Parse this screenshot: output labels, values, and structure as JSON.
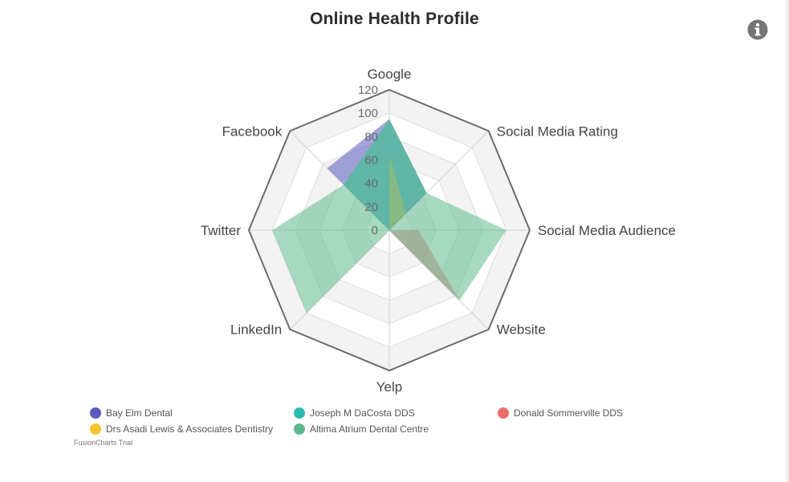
{
  "title": "Online Health Profile",
  "info_icon": "info-circle-icon",
  "trial_text": "FusionCharts Trial",
  "chart_data": {
    "type": "radar",
    "title": "Online Health Profile",
    "categories": [
      "Google",
      "Social Media Rating",
      "Social Media Audience",
      "Website",
      "Yelp",
      "LinkedIn",
      "Twitter",
      "Facebook"
    ],
    "ylim": [
      0,
      120
    ],
    "ticks": [
      0,
      20,
      40,
      60,
      80,
      100,
      120
    ],
    "tick_labels": [
      "0",
      "20",
      "40",
      "60",
      "80",
      "100",
      "120"
    ],
    "legend_position": "bottom",
    "series": [
      {
        "name": "Bay Elm Dental",
        "color": "#5a5ac0",
        "values": [
          95,
          45,
          0,
          0,
          0,
          0,
          0,
          75
        ]
      },
      {
        "name": "Joseph M DaCosta DDS",
        "color": "#2bbcb4",
        "values": [
          95,
          45,
          0,
          0,
          0,
          0,
          0,
          55
        ]
      },
      {
        "name": "Donald Sommerville DDS",
        "color": "#ee6a6a",
        "values": [
          0,
          0,
          25,
          85,
          0,
          0,
          0,
          0
        ]
      },
      {
        "name": "Drs Asadi Lewis & Associates Dentistry",
        "color": "#f5c431",
        "values": [
          65,
          20,
          0,
          0,
          0,
          0,
          0,
          0
        ]
      },
      {
        "name": "Altima Atrium Dental Centre",
        "color": "#5fb98e",
        "values": [
          95,
          45,
          100,
          85,
          0,
          100,
          100,
          55
        ]
      }
    ]
  }
}
